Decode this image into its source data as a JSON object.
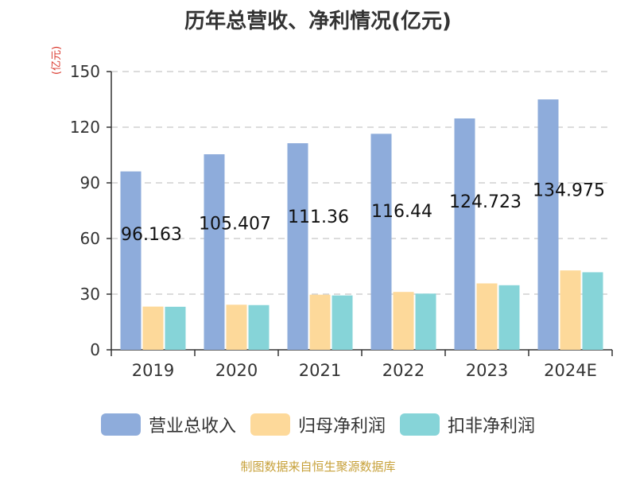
{
  "chart_data": {
    "type": "bar",
    "title": "历年总营收、净利情况(亿元)",
    "y_unit_label": "(亿元)",
    "categories": [
      "2019",
      "2020",
      "2021",
      "2022",
      "2023",
      "2024E"
    ],
    "series": [
      {
        "name": "营业总收入",
        "color": "#8eacdb",
        "values": [
          96.163,
          105.407,
          111.36,
          116.44,
          124.723,
          134.975
        ]
      },
      {
        "name": "归母净利润",
        "color": "#fdd99a",
        "values": [
          23.3,
          24.3,
          29.7,
          31.2,
          35.8,
          42.8
        ]
      },
      {
        "name": "扣非净利润",
        "color": "#86d4d8",
        "values": [
          23.2,
          24.1,
          29.3,
          30.3,
          34.8,
          41.8
        ]
      }
    ],
    "data_labels": [
      "96.163",
      "105.407",
      "111.36",
      "116.44",
      "124.723",
      "134.975"
    ],
    "ylim": [
      0,
      150
    ],
    "yticks": [
      0,
      30,
      60,
      90,
      120,
      150
    ],
    "grid": true,
    "legend_position": "bottom"
  },
  "footer": {
    "source": "制图数据来自恒生聚源数据库"
  }
}
